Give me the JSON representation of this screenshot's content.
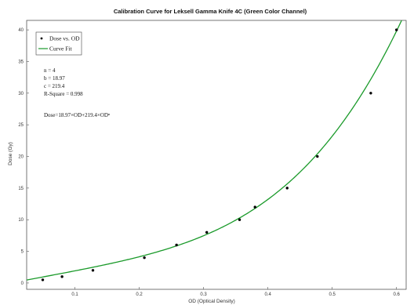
{
  "chart_data": {
    "type": "scatter",
    "title": "Calibration Curve for Leksell Gamma Knife 4C (Green Color Channel)",
    "xlabel": "OD (Optical Density)",
    "ylabel": "Dose (Gy)",
    "xlim": [
      0.025,
      0.615
    ],
    "ylim": [
      -1,
      41.5
    ],
    "xticks": [
      0.1,
      0.2,
      0.3,
      0.4,
      0.5,
      0.6
    ],
    "xtick_labels": [
      "0.1",
      "0.2",
      "0.3",
      "0.4",
      "0.5",
      "0.6"
    ],
    "yticks": [
      0,
      5,
      10,
      15,
      20,
      25,
      30,
      35,
      40
    ],
    "ytick_labels": [
      "0",
      "5",
      "10",
      "15",
      "20",
      "25",
      "30",
      "35",
      "40"
    ],
    "grid": false,
    "legend_position": "top-left",
    "series": [
      {
        "name": "Dose vs. OD",
        "kind": "markers",
        "color": "#000000",
        "x": [
          0.05,
          0.08,
          0.128,
          0.208,
          0.258,
          0.305,
          0.356,
          0.38,
          0.43,
          0.477,
          0.56,
          0.6
        ],
        "y": [
          0.5,
          1,
          2,
          4,
          6,
          8,
          10,
          12,
          15,
          20,
          30,
          40
        ]
      },
      {
        "name": "Curve Fit",
        "kind": "line",
        "color": "#1a9a2a",
        "model": {
          "n": 4,
          "b": 18.97,
          "c": 219.4
        }
      }
    ],
    "annotations": [
      "n = 4",
      "b = 18.97",
      "c = 219.4",
      "R-Square = 0.998",
      "Dose=18.97×OD+219.4×ODⁿ"
    ]
  }
}
